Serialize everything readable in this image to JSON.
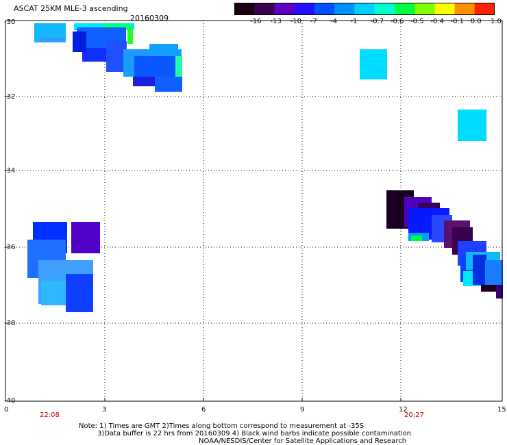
{
  "header": {
    "title": "ASCAT 25KM MLE-3 ascending",
    "date": "20160309"
  },
  "colorbar": {
    "labels": [
      "-16",
      "-13",
      "-10",
      "-7",
      "-4",
      "-1",
      "-0.7",
      "-0.6",
      "-0.5",
      "-0.4",
      "-0.1",
      "0.0",
      "1.0"
    ],
    "colors": [
      "#1a0010",
      "#3a0050",
      "#6000c0",
      "#2010ff",
      "#0050ff",
      "#0090ff",
      "#00d0ff",
      "#00ffd0",
      "#00ff40",
      "#80ff00",
      "#ffff00",
      "#ff9000",
      "#ff2000"
    ]
  },
  "axes": {
    "lat_labels": [
      "-30",
      "-32",
      "-34",
      "-36",
      "-38",
      "-40"
    ],
    "lon_labels": [
      "0",
      "3",
      "6",
      "9",
      "12",
      "15"
    ],
    "time_labels": [
      "22:08",
      "20:27"
    ]
  },
  "notes": {
    "line1": "Note: 1) Times are GMT 2)Times along bottom correspond to measurement at -35S",
    "line2": "3)Data buffer is 22 hrs from 20160309 4) Black wind barbs indicate possible contamination",
    "line3": "NOAA/NESDIS/Center for Satellite Applications and Research"
  }
}
